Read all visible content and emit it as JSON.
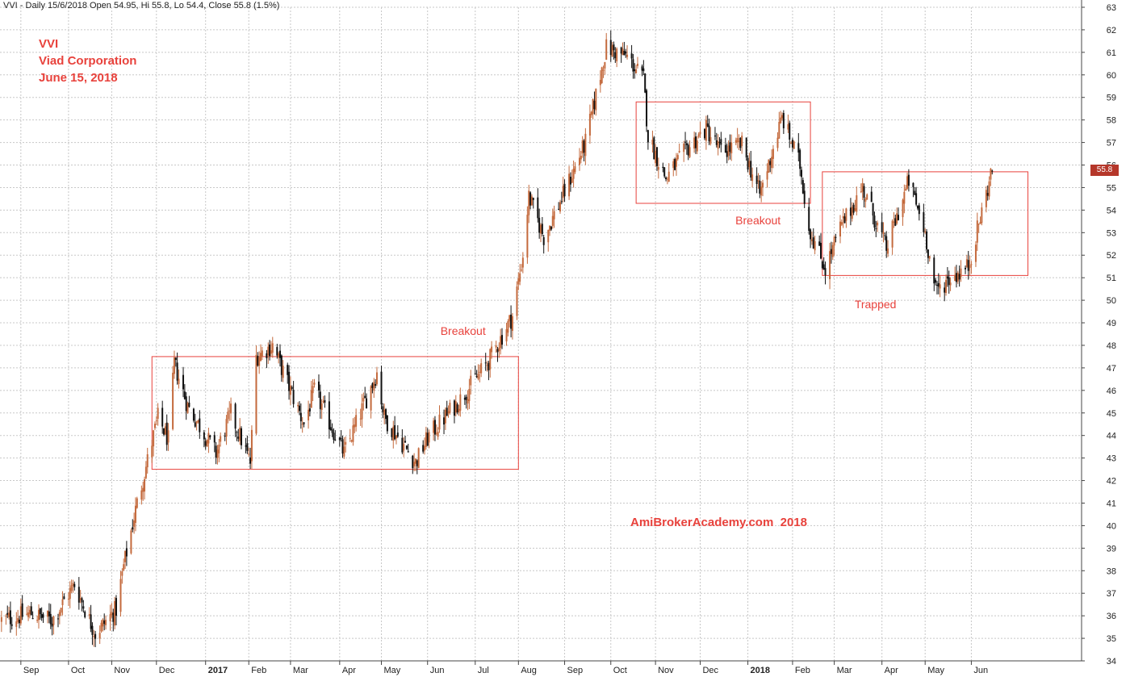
{
  "header": {
    "text": "VVI - Daily 15/6/2018 Open 54.95, Hi 55.8, Lo 54.4, Close 55.8 (1.5%)"
  },
  "title": {
    "line1": "VVI",
    "line2": "Viad Corporation",
    "line3": "June 15, 2018"
  },
  "watermark": "AmiBrokerAcademy.com  2018",
  "last_price_label": "55.8",
  "colors": {
    "up": "#c46a3d",
    "down": "#111111",
    "annotation": "#e8423c",
    "grid": "#c8c8c8",
    "last_price_bg": "#b5372a"
  },
  "chart_data": {
    "type": "candlestick",
    "title": "",
    "ylim": [
      34,
      63
    ],
    "y_ticks": [
      34,
      35,
      36,
      37,
      38,
      39,
      40,
      41,
      42,
      43,
      44,
      45,
      46,
      47,
      48,
      49,
      50,
      51,
      52,
      53,
      54,
      55,
      56,
      57,
      58,
      59,
      60,
      61,
      62,
      63
    ],
    "x_month_labels": [
      "Sep",
      "Oct",
      "Nov",
      "Dec",
      "2017",
      "Feb",
      "Mar",
      "Apr",
      "May",
      "Jun",
      "Jul",
      "Aug",
      "Sep",
      "Oct",
      "Nov",
      "Dec",
      "2018",
      "Feb",
      "Mar",
      "Apr",
      "May",
      "Jun"
    ],
    "grid": true,
    "x_range": [
      "2016-08-18",
      "2018-08-14"
    ],
    "x_ticks": [
      "2016-09-01",
      "2016-10-03",
      "2016-11-01",
      "2016-12-01",
      "2017-01-03",
      "2017-02-01",
      "2017-03-01",
      "2017-04-03",
      "2017-05-01",
      "2017-06-01",
      "2017-07-03",
      "2017-08-01",
      "2017-09-01",
      "2017-10-02",
      "2017-11-01",
      "2017-12-01",
      "2018-01-02",
      "2018-02-01",
      "2018-03-01",
      "2018-04-02",
      "2018-05-01",
      "2018-06-01"
    ],
    "anchors": [
      [
        "2016-08-19",
        35.8
      ],
      [
        "2016-09-08",
        36.1
      ],
      [
        "2016-09-22",
        35.8
      ],
      [
        "2016-10-07",
        37.4
      ],
      [
        "2016-10-21",
        35.2
      ],
      [
        "2016-11-04",
        36.3
      ],
      [
        "2016-11-09",
        38.2
      ],
      [
        "2016-11-17",
        40.7
      ],
      [
        "2016-12-02",
        44.8
      ],
      [
        "2016-12-09",
        43.8
      ],
      [
        "2016-12-13",
        47.2
      ],
      [
        "2016-12-22",
        45.3
      ],
      [
        "2017-01-10",
        43.2
      ],
      [
        "2017-01-20",
        45.0
      ],
      [
        "2017-02-02",
        42.8
      ],
      [
        "2017-02-06",
        47.5
      ],
      [
        "2017-02-17",
        48.0
      ],
      [
        "2017-03-10",
        44.5
      ],
      [
        "2017-03-17",
        46.0
      ],
      [
        "2017-04-06",
        43.2
      ],
      [
        "2017-04-28",
        46.8
      ],
      [
        "2017-05-03",
        44.8
      ],
      [
        "2017-05-24",
        42.8
      ],
      [
        "2017-06-02",
        44.0
      ],
      [
        "2017-06-23",
        45.6
      ],
      [
        "2017-07-12",
        47.3
      ],
      [
        "2017-07-28",
        49.3
      ],
      [
        "2017-08-04",
        52.0
      ],
      [
        "2017-08-08",
        54.6
      ],
      [
        "2017-08-18",
        52.8
      ],
      [
        "2017-09-01",
        54.8
      ],
      [
        "2017-09-15",
        57.0
      ],
      [
        "2017-09-29",
        61.2
      ],
      [
        "2017-10-13",
        60.8
      ],
      [
        "2017-10-24",
        59.8
      ],
      [
        "2017-10-27",
        57.3
      ],
      [
        "2017-11-08",
        55.4
      ],
      [
        "2017-11-22",
        56.7
      ],
      [
        "2017-12-05",
        57.6
      ],
      [
        "2017-12-15",
        56.6
      ],
      [
        "2017-12-29",
        56.9
      ],
      [
        "2018-01-10",
        54.7
      ],
      [
        "2018-01-25",
        58.1
      ],
      [
        "2018-02-06",
        56.0
      ],
      [
        "2018-02-12",
        53.2
      ],
      [
        "2018-02-23",
        51.4
      ],
      [
        "2018-03-05",
        53.2
      ],
      [
        "2018-03-20",
        55.0
      ],
      [
        "2018-04-05",
        52.3
      ],
      [
        "2018-04-20",
        55.3
      ],
      [
        "2018-05-01",
        53.0
      ],
      [
        "2018-05-08",
        50.4
      ],
      [
        "2018-05-16",
        50.9
      ],
      [
        "2018-05-30",
        51.5
      ],
      [
        "2018-06-15",
        55.8
      ]
    ],
    "boxes": [
      {
        "start": "2016-11-28",
        "end": "2017-08-01",
        "low": 42.5,
        "high": 47.5
      },
      {
        "start": "2017-10-19",
        "end": "2018-02-13",
        "low": 54.3,
        "high": 58.8
      },
      {
        "start": "2018-02-21",
        "end": "2018-07-09",
        "low": 51.1,
        "high": 55.7
      }
    ],
    "annotations": [
      {
        "text": "Breakout",
        "x": "2017-06-27",
        "y": 48.6
      },
      {
        "text": "Breakout",
        "x": "2018-01-11",
        "y": 53.5
      },
      {
        "text": "Trapped",
        "x": "2018-04-01",
        "y": 49.8
      }
    ],
    "last_price": 55.8
  }
}
